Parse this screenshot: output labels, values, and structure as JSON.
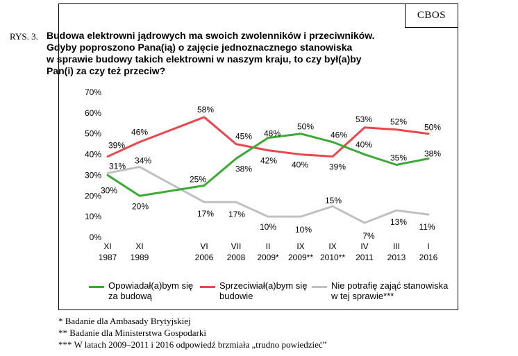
{
  "badge": "CBOS",
  "figure_label": "RYS. 3.",
  "title_lines": [
    "Budowa elektrowni jądrowych ma swoich zwolenników i przeciwników.",
    "Gdyby poproszono Pana(ią) o zajęcie jednoznacznego stanowiska",
    "w sprawie budowy takich elektrowni w naszym kraju, to czy był(a)by",
    "Pan(i) za czy też przeciw?"
  ],
  "legend": [
    {
      "l1": "Opowiadał(a)bym się",
      "l2": "za budową",
      "color": "#3aaa35"
    },
    {
      "l1": "Sprzeciwiał(a)bym się",
      "l2": "budowie",
      "color": "#e8474c"
    },
    {
      "l1": "Nie potrafię zająć stanowiska",
      "l2": "w tej sprawie***",
      "color": "#c0c0c0"
    }
  ],
  "notes": [
    "* Badanie dla Ambasady Brytyjskiej",
    "** Badanie dla Ministerstwa Gospodarki",
    "*** W latach 2009–2011 i 2016 odpowiedź brzmiała „trudno powiedzieć”"
  ],
  "chart_data": {
    "type": "line",
    "title": "Budowa elektrowni jądrowych ma swoich zwolenników i przeciwników.",
    "ylim": [
      0,
      70
    ],
    "yticks": [
      "0%",
      "10%",
      "20%",
      "30%",
      "40%",
      "50%",
      "60%",
      "70%"
    ],
    "grid": false,
    "legend_position": "bottom",
    "categories": [
      {
        "l1": "XI",
        "l2": "1987"
      },
      {
        "l1": "XI",
        "l2": "1989"
      },
      {
        "l1": "VI",
        "l2": "2006"
      },
      {
        "l1": "VII",
        "l2": "2008"
      },
      {
        "l1": "II",
        "l2": "2009*"
      },
      {
        "l1": "IX",
        "l2": "2009**"
      },
      {
        "l1": "IX",
        "l2": "2010**"
      },
      {
        "l1": "IV",
        "l2": "2011"
      },
      {
        "l1": "III",
        "l2": "2013"
      },
      {
        "l1": "I",
        "l2": "2016"
      }
    ],
    "series": [
      {
        "name": "Opowiadał(a)bym się za budową",
        "color": "#3aaa35",
        "values": [
          30,
          20,
          25,
          38,
          48,
          50,
          46,
          40,
          35,
          38
        ],
        "labels": [
          "30%",
          "20%",
          "25%",
          "38%",
          "48%",
          "50%",
          "46%",
          "40%",
          "35%",
          "38%"
        ]
      },
      {
        "name": "Sprzeciwiał(a)bym się budowie",
        "color": "#e8474c",
        "values": [
          39,
          46,
          58,
          45,
          42,
          40,
          39,
          53,
          52,
          50
        ],
        "labels": [
          "39%",
          "46%",
          "58%",
          "45%",
          "42%",
          "40%",
          "39%",
          "53%",
          "52%",
          "50%"
        ]
      },
      {
        "name": "Nie potrafię zająć stanowiska w tej sprawie***",
        "color": "#c0c0c0",
        "values": [
          31,
          34,
          17,
          17,
          10,
          10,
          15,
          7,
          13,
          11
        ],
        "labels": [
          "31%",
          "34%",
          "17%",
          "17%",
          "10%",
          "10%",
          "15%",
          "7%",
          "13%",
          "11%"
        ]
      }
    ]
  }
}
